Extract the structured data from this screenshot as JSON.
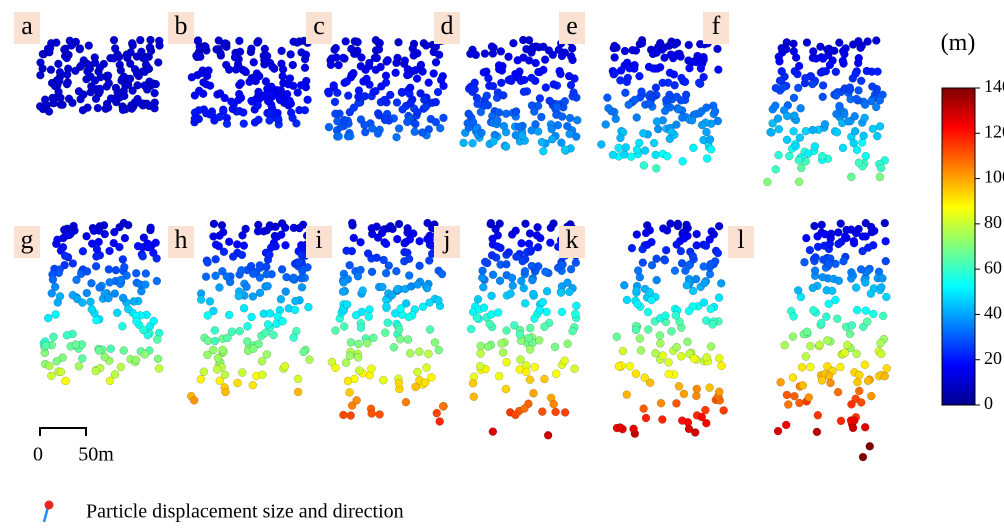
{
  "panels": [
    {
      "label": "a"
    },
    {
      "label": "b"
    },
    {
      "label": "c"
    },
    {
      "label": "d"
    },
    {
      "label": "e"
    },
    {
      "label": "f"
    },
    {
      "label": "g"
    },
    {
      "label": "h"
    },
    {
      "label": "i"
    },
    {
      "label": "j"
    },
    {
      "label": "k"
    },
    {
      "label": "l"
    }
  ],
  "colorbar": {
    "unit": "(m)",
    "lim": [
      0,
      140
    ],
    "ticks": [
      0,
      20,
      40,
      60,
      80,
      100,
      120,
      140
    ]
  },
  "scale_bar": {
    "start": "0",
    "end": "50m"
  },
  "legend": {
    "text": "Particle displacement size and direction"
  }
}
